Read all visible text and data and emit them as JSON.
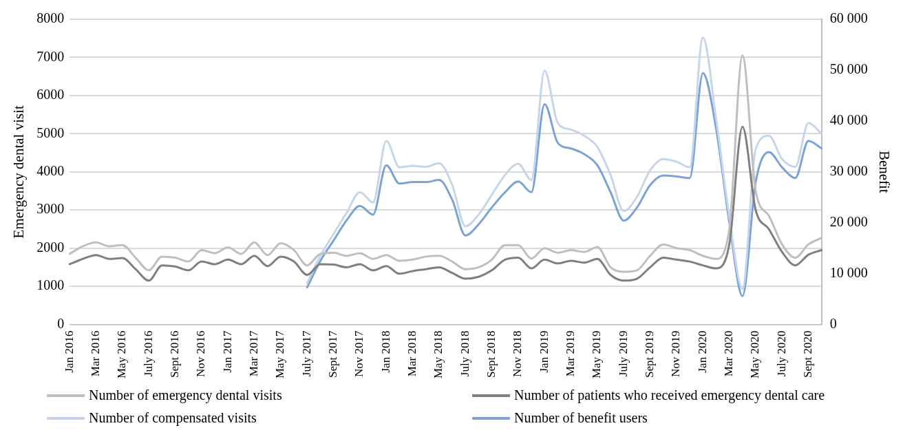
{
  "chart_data": {
    "type": "line",
    "ylabel": "Emergency dental visit",
    "y2label": "Benefit",
    "categories": [
      "Jan 2016",
      null,
      "Mar 2016",
      null,
      "May 2016",
      null,
      "July 2016",
      null,
      "Sept 2016",
      null,
      "Nov 2016",
      null,
      "Jan 2017",
      null,
      "Mar 2017",
      null,
      "May 2017",
      null,
      "July 2017",
      null,
      "Sept 2017",
      null,
      "Nov 2017",
      null,
      "Jan 2018",
      null,
      "Mar 2018",
      null,
      "May 2018",
      null,
      "July 2018",
      null,
      "Sept 2018",
      null,
      "Nov 2018",
      null,
      "Jan 2019",
      null,
      "Mar 2019",
      null,
      "May 2019",
      null,
      "July 2019",
      null,
      "Sept 2019",
      null,
      "Nov 2019",
      null,
      "Jan 2020",
      null,
      "Mar 2020",
      null,
      "May 2020",
      null,
      "July 2020",
      null,
      "Sept 2020",
      null
    ],
    "series": [
      {
        "name": "Number of emergency dental visits",
        "color": "#bfbfbf",
        "values": [
          1850,
          2050,
          2150,
          2050,
          2080,
          1750,
          1420,
          1780,
          1750,
          1650,
          1950,
          1870,
          2020,
          1850,
          2150,
          1820,
          2130,
          1950,
          1550,
          1850,
          1880,
          1800,
          1870,
          1720,
          1820,
          1670,
          1700,
          1780,
          1800,
          1650,
          1450,
          1500,
          1700,
          2080,
          2080,
          1730,
          2000,
          1880,
          1950,
          1900,
          2030,
          1500,
          1380,
          1420,
          1800,
          2100,
          2000,
          1950,
          1800,
          1720,
          2500,
          7050,
          3500,
          2850,
          2100,
          1750,
          2100,
          2270
        ]
      },
      {
        "name": "Number of patients who received emergency dental care",
        "color": "#7f7f7f",
        "values": [
          1580,
          1720,
          1820,
          1720,
          1740,
          1450,
          1150,
          1550,
          1520,
          1420,
          1650,
          1580,
          1700,
          1580,
          1800,
          1530,
          1780,
          1650,
          1300,
          1580,
          1570,
          1500,
          1580,
          1420,
          1530,
          1330,
          1400,
          1450,
          1500,
          1350,
          1200,
          1250,
          1420,
          1700,
          1750,
          1470,
          1700,
          1600,
          1670,
          1620,
          1720,
          1300,
          1150,
          1200,
          1500,
          1750,
          1700,
          1650,
          1550,
          1470,
          2100,
          5180,
          3000,
          2500,
          1900,
          1550,
          1830,
          1950
        ]
      },
      {
        "name": "Number of compensated visits",
        "color": "#c6d6ea",
        "axis": "y2",
        "values": [
          null,
          null,
          null,
          null,
          null,
          null,
          null,
          null,
          null,
          null,
          null,
          null,
          null,
          null,
          null,
          null,
          null,
          null,
          8100,
          13500,
          17800,
          22000,
          26000,
          24000,
          36100,
          30900,
          31200,
          31000,
          31700,
          27400,
          19300,
          21600,
          25500,
          29400,
          31600,
          28400,
          49900,
          39600,
          38300,
          37100,
          34900,
          29400,
          22300,
          25100,
          30300,
          32500,
          32000,
          30900,
          56400,
          40400,
          21200,
          7000,
          34500,
          37100,
          32500,
          31000,
          39600,
          37500
        ]
      },
      {
        "name": "Number of benefit users",
        "color": "#7ba3d3",
        "axis": "y2",
        "values": [
          null,
          null,
          null,
          null,
          null,
          null,
          null,
          null,
          null,
          null,
          null,
          null,
          null,
          null,
          null,
          null,
          null,
          null,
          7300,
          12500,
          16500,
          20500,
          23300,
          21600,
          31300,
          27700,
          28000,
          28000,
          28400,
          24500,
          17500,
          19700,
          23000,
          26000,
          28100,
          26000,
          43300,
          35700,
          34600,
          33500,
          31300,
          26000,
          20400,
          23000,
          27400,
          29300,
          29100,
          28800,
          49400,
          38500,
          20100,
          5600,
          28000,
          33900,
          30900,
          28800,
          36100,
          34600
        ]
      }
    ],
    "ylim": [
      0,
      8000
    ],
    "yticks": [
      0,
      1000,
      2000,
      3000,
      4000,
      5000,
      6000,
      7000,
      8000
    ],
    "y2lim": [
      0,
      60000
    ],
    "y2ticks": [
      0,
      {
        "value": 10000,
        "label": "10 000"
      },
      {
        "value": 20000,
        "label": "20 000"
      },
      {
        "value": 30000,
        "label": "30 000"
      },
      {
        "value": 40000,
        "label": "40 000"
      },
      {
        "value": 50000,
        "label": "50 000"
      },
      {
        "value": 60000,
        "label": "60 000"
      }
    ],
    "grid": "y",
    "legend": "bottom",
    "marker": "none",
    "line_style": "solid"
  }
}
